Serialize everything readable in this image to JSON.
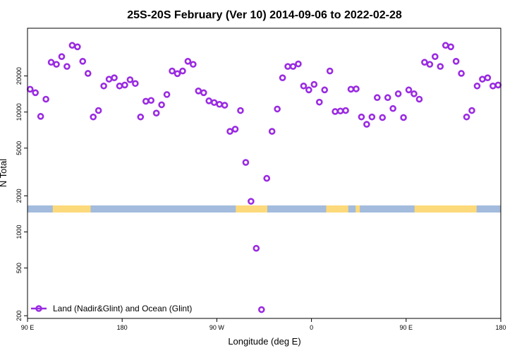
{
  "chart_data": {
    "type": "scatter",
    "title": "25S-20S February (Ver 10)   2014-09-06 to 2022-02-28",
    "xlabel": "Longitude (deg E)",
    "ylabel": "N Total",
    "x_scale": "linear",
    "y_scale": "log",
    "xlim": [
      90,
      540
    ],
    "ylim": [
      190,
      50000
    ],
    "x_ticks": [
      {
        "value": 90,
        "label": "90 E"
      },
      {
        "value": 180,
        "label": "180"
      },
      {
        "value": 270,
        "label": "90 W"
      },
      {
        "value": 360,
        "label": "0"
      },
      {
        "value": 450,
        "label": "90 E"
      },
      {
        "value": 540,
        "label": "180"
      }
    ],
    "y_ticks": [
      {
        "value": 200,
        "label": "200"
      },
      {
        "value": 500,
        "label": "500"
      },
      {
        "value": 1000,
        "label": "1000"
      },
      {
        "value": 2000,
        "label": "2000"
      },
      {
        "value": 5000,
        "label": "5000"
      },
      {
        "value": 10000,
        "label": "10000"
      },
      {
        "value": 20000,
        "label": "20000"
      }
    ],
    "grid": false,
    "legend_position": "bottom-left",
    "series": [
      {
        "name": "Land (Nadir&Glint) and Ocean (Glint)",
        "color": "#9a2be2",
        "marker": "ring",
        "x": [
          92.5,
          97.5,
          102.5,
          107.5,
          112.5,
          117.5,
          122.5,
          127.5,
          132.5,
          137.5,
          142.5,
          147.5,
          152.5,
          157.5,
          162.5,
          167.5,
          172.5,
          177.5,
          182.5,
          187.5,
          192.5,
          197.5,
          202.5,
          207.5,
          212.5,
          217.5,
          222.5,
          227.5,
          232.5,
          237.5,
          242.5,
          247.5,
          252.5,
          257.5,
          262.5,
          267.5,
          272.5,
          277.5,
          282.5,
          287.5,
          292.5,
          297.5,
          302.5,
          307.5,
          312.5,
          317.5,
          322.5,
          327.5,
          332.5,
          337.5,
          342.5,
          347.5,
          352.5,
          357.5,
          362.5,
          367.5,
          372.5,
          377.5,
          382.5,
          387.5,
          392.5,
          397.5,
          402.5,
          407.5,
          412.5,
          417.5,
          422.5,
          427.5,
          432.5,
          437.5,
          442.5,
          447.5,
          452.5,
          457.5,
          462.5,
          467.5,
          472.5,
          477.5,
          482.5,
          487.5,
          492.5,
          497.5,
          502.5,
          507.5,
          512.5,
          517.5,
          522.5,
          527.5,
          532.5,
          537.5
        ],
        "y": [
          15500,
          14500,
          9200,
          12800,
          26000,
          25000,
          29000,
          24000,
          36000,
          35000,
          26500,
          21000,
          9100,
          10300,
          16500,
          18800,
          19300,
          16500,
          16800,
          18600,
          17300,
          9100,
          12300,
          12500,
          9800,
          11500,
          14000,
          22000,
          20900,
          22000,
          26500,
          25000,
          15000,
          14500,
          12400,
          12000,
          11600,
          11400,
          6900,
          7200,
          10300,
          3800,
          1800,
          730,
          225,
          2800,
          6900,
          10600,
          19300,
          24000,
          24000,
          25200,
          16500,
          15300,
          17000,
          12100,
          15300,
          22000,
          10100,
          10200,
          10300,
          15500,
          15600,
          9100,
          7900,
          9100,
          13200,
          9000,
          13200,
          10700,
          14200,
          9000,
          15300,
          14200,
          12800,
          26000,
          25000,
          29000,
          24000,
          36000,
          35000,
          26500,
          21000,
          9100,
          10300,
          16500,
          18800,
          19300,
          16500,
          16800
        ]
      }
    ],
    "background_map": {
      "land_color": "#fcd97a",
      "ocean_color": "#a3bbdc",
      "lat_range": [
        -25,
        -20
      ],
      "land_lon_ranges": [
        [
          114,
          150
        ],
        [
          288,
          318
        ],
        [
          374,
          395
        ],
        [
          402,
          406
        ],
        [
          458,
          517
        ]
      ]
    }
  }
}
